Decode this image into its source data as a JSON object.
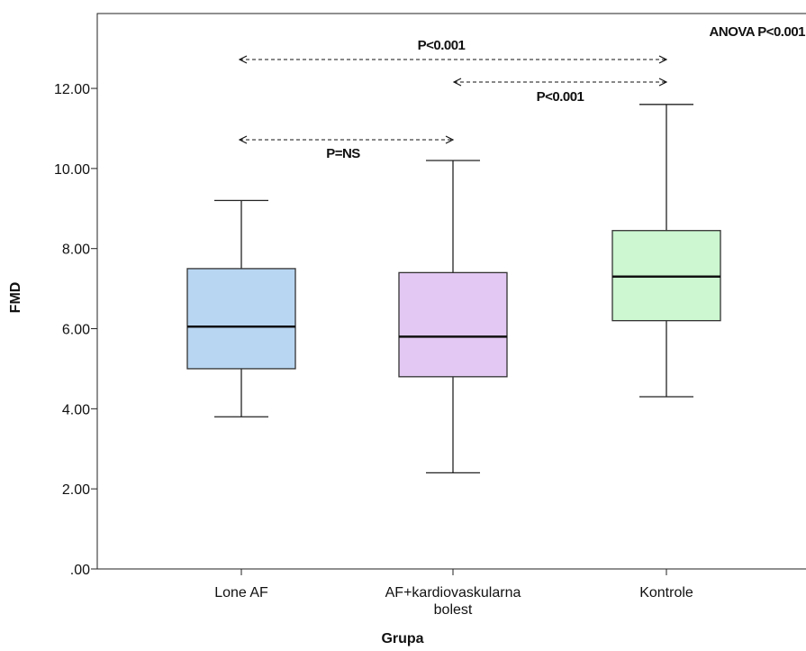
{
  "chart_data": {
    "type": "box",
    "x_label": "Grupa",
    "y_label": "FMD",
    "categories": [
      "Lone AF",
      "AF+kardiovaskularna bolest",
      "Kontrole"
    ],
    "boxes": [
      {
        "min": 3.8,
        "q1": 5.0,
        "median": 6.05,
        "q3": 7.5,
        "max": 9.2,
        "color": "#b8d6f2"
      },
      {
        "min": 2.4,
        "q1": 4.8,
        "median": 5.8,
        "q3": 7.4,
        "max": 10.2,
        "color": "#e2c8f2"
      },
      {
        "min": 4.3,
        "q1": 6.2,
        "median": 7.3,
        "q3": 8.45,
        "max": 11.6,
        "color": "#ccf7d0"
      }
    ],
    "ylim": [
      0,
      13.87
    ],
    "yticks": [
      {
        "value": 0,
        "label": ".00"
      },
      {
        "value": 2,
        "label": "2.00"
      },
      {
        "value": 4,
        "label": "4.00"
      },
      {
        "value": 6,
        "label": "6.00"
      },
      {
        "value": 8,
        "label": "8.00"
      },
      {
        "value": 10,
        "label": "10.00"
      },
      {
        "value": 12,
        "label": "12.00"
      }
    ],
    "annotations": [
      "P<0.001",
      "P<0.001",
      "P=NS",
      "ANOVA P<0.001"
    ],
    "grid": false
  }
}
